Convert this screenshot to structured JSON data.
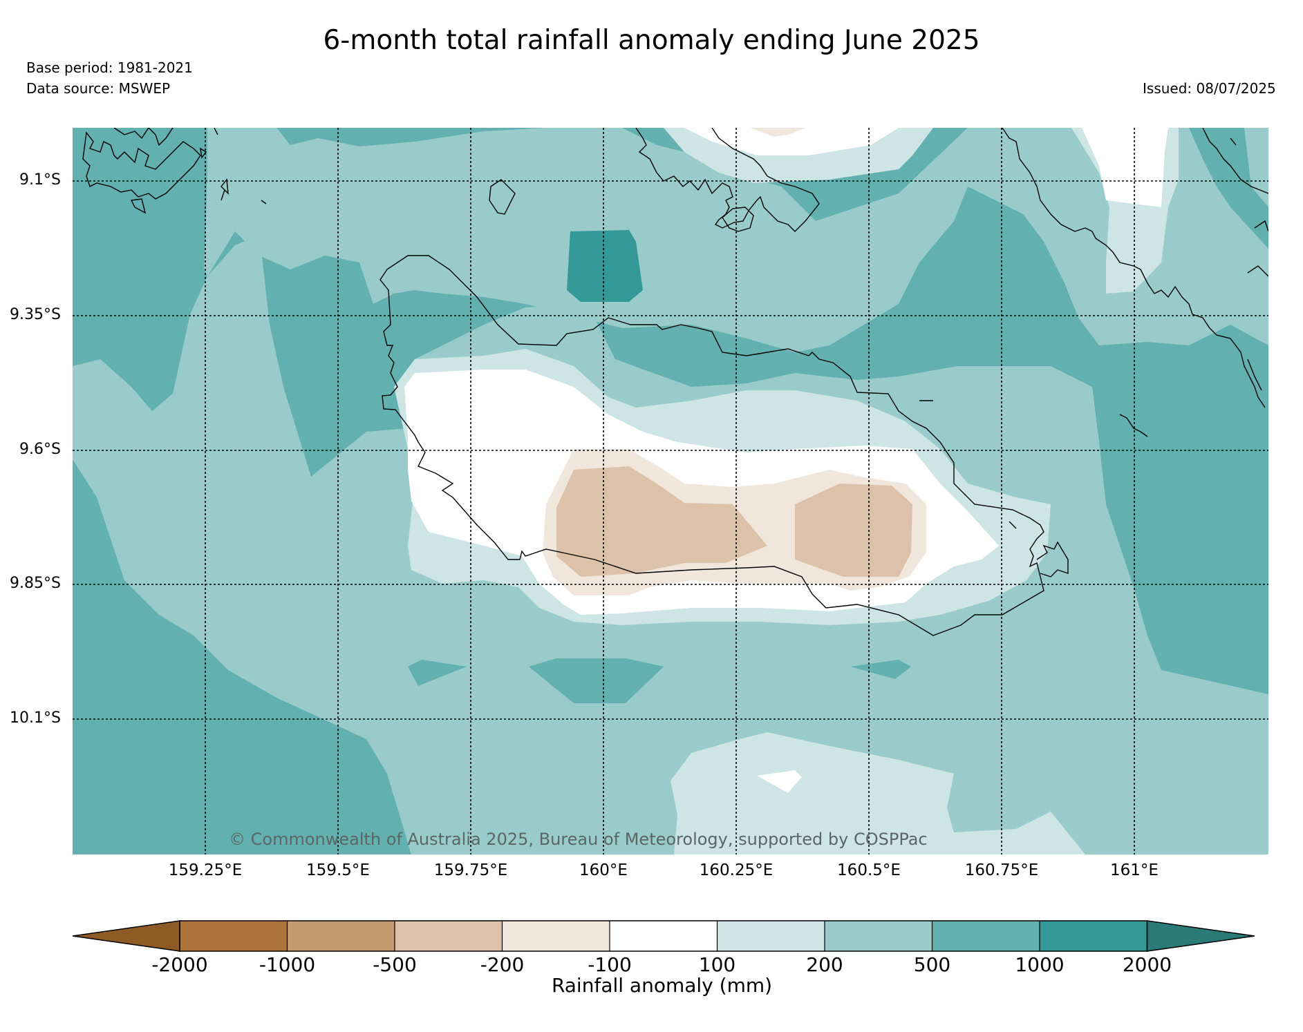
{
  "title": "6-month total rainfall anomaly ending June 2025",
  "base_period": "Base period: 1981-2021",
  "data_source": "Data source: MSWEP",
  "issued": "Issued: 08/07/2025",
  "copyright": "© Commonwealth of Australia 2025, Bureau of Meteorology, supported by COSPPac",
  "lat_labels": [
    "9.1°S",
    "9.35°S",
    "9.6°S",
    "9.85°S",
    "10.1°S"
  ],
  "lon_labels": [
    "159.25°E",
    "159.5°E",
    "159.75°E",
    "160°E",
    "160.25°E",
    "160.5°E",
    "160.75°E",
    "161°E"
  ],
  "colorbar": {
    "title": "Rainfall anomaly (mm)",
    "ticks": [
      "-2000",
      "-1000",
      "-500",
      "-200",
      "-100",
      "100",
      "200",
      "500",
      "1000",
      "2000"
    ],
    "colors": [
      "#8e5a26",
      "#ad743c",
      "#c49a70",
      "#dbc2a8",
      "#f0e6dc",
      "#ffffff",
      "#cde5e4",
      "#9acbcb",
      "#63b0b0",
      "#339896",
      "#2a7a78"
    ]
  },
  "colors": {
    "c1000": "#63b0b0",
    "c500": "#9acbcb",
    "c200": "#cde5e4",
    "c100": "#ffffff",
    "cneg100": "#f0e6dc",
    "cneg200": "#dbc2a8",
    "c2000": "#339896"
  }
}
